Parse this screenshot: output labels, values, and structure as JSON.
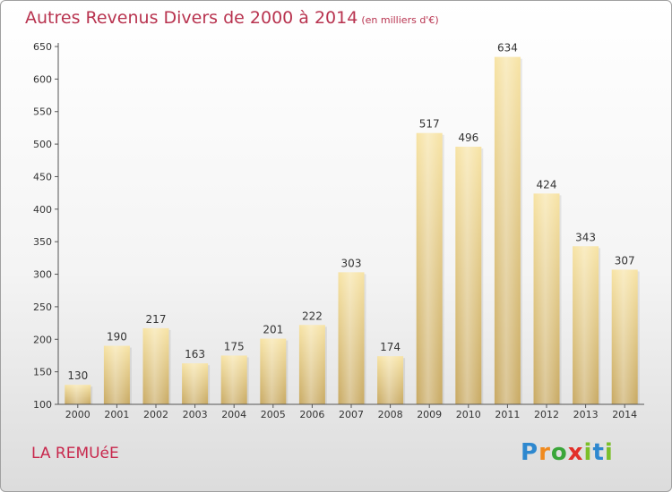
{
  "title": "Autres Revenus Divers de 2000 à 2014",
  "title_unit": "(en milliers d'€)",
  "town": "LA REMUéE",
  "logo": "Proxiti",
  "colors": {
    "bar_top": "#f7e3a4",
    "bar_bottom": "#c8a962",
    "title": "#b8334f",
    "town": "#c8284d"
  },
  "chart_data": {
    "type": "bar",
    "title": "Autres Revenus Divers de 2000 à 2014",
    "categories": [
      "2000",
      "2001",
      "2002",
      "2003",
      "2004",
      "2005",
      "2006",
      "2007",
      "2008",
      "2009",
      "2010",
      "2011",
      "2012",
      "2013",
      "2014"
    ],
    "values": [
      130,
      190,
      217,
      163,
      175,
      201,
      222,
      303,
      174,
      517,
      496,
      634,
      424,
      343,
      307
    ],
    "ylim": [
      100,
      650
    ],
    "yticks": [
      100,
      150,
      200,
      250,
      300,
      350,
      400,
      450,
      500,
      550,
      600,
      650
    ],
    "grid": false,
    "legend": "none"
  }
}
